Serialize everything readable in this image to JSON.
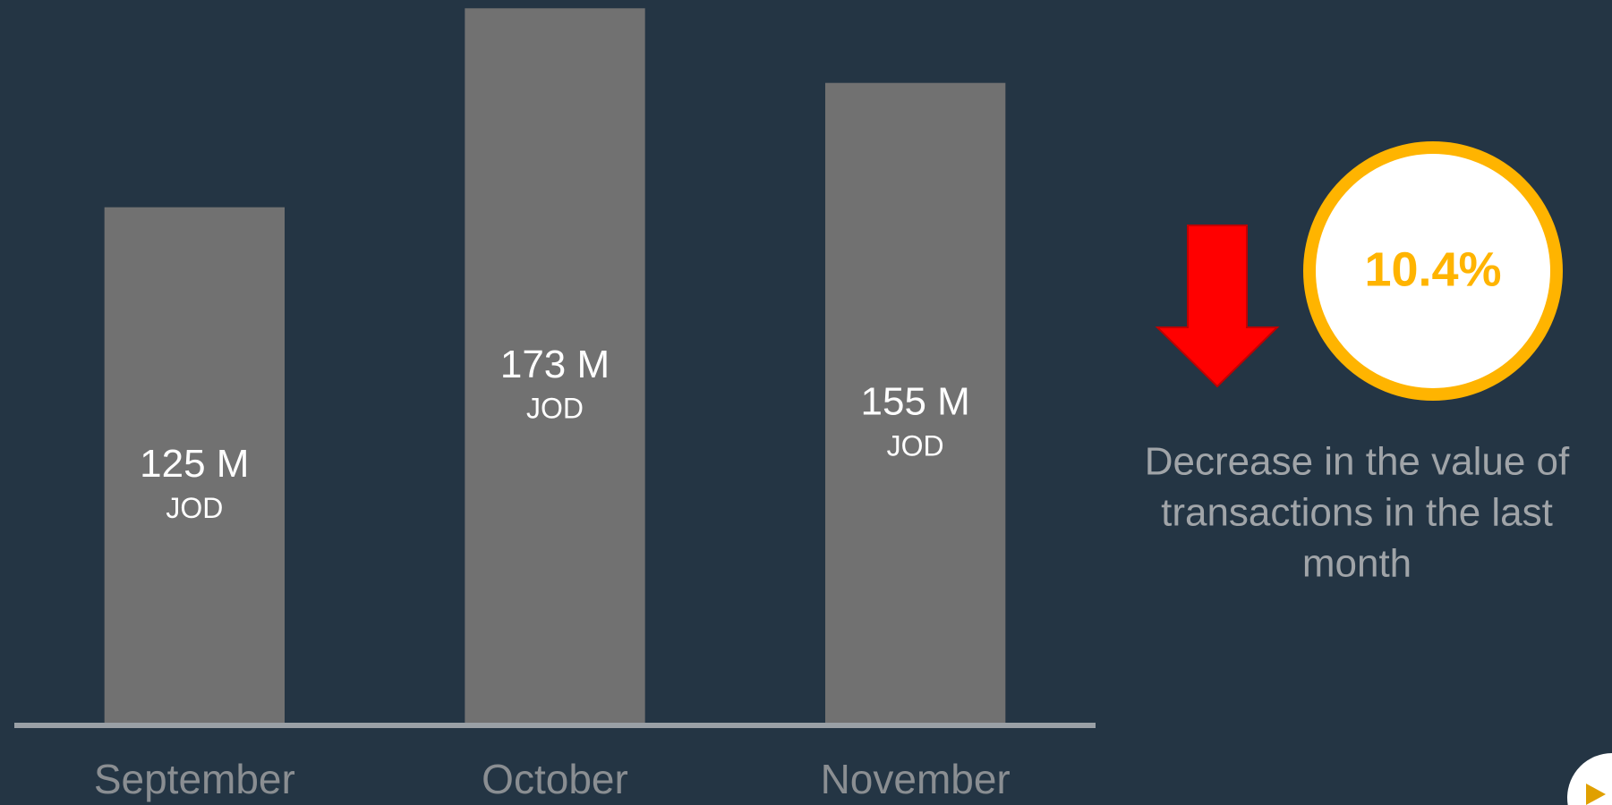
{
  "chart_data": {
    "type": "bar",
    "categories": [
      "September",
      "October",
      "November"
    ],
    "values": [
      125,
      173,
      155
    ],
    "value_labels": [
      "125 M",
      "173 M",
      "155 M"
    ],
    "unit": "JOD",
    "color": "#717171",
    "ylim": [
      0,
      175
    ],
    "highlight": {
      "value": 10.4,
      "label": "10.4%"
    },
    "annotation_lines": [
      "Decrease in the value of",
      "transactions in the last",
      "month"
    ]
  }
}
